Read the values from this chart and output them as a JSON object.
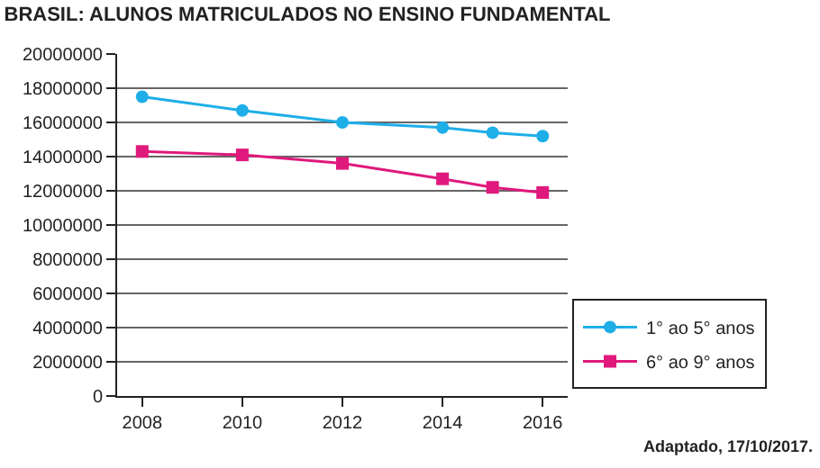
{
  "chart_data": {
    "type": "line",
    "title": "BRASIL: ALUNOS MATRICULADOS NO ENSINO FUNDAMENTAL",
    "x": [
      2008,
      2010,
      2012,
      2014,
      2015,
      2016
    ],
    "series": [
      {
        "name": "1° ao 5° anos",
        "color": "#1eaee8",
        "marker": "circle",
        "values": [
          17500000,
          16700000,
          16000000,
          15700000,
          15400000,
          15200000
        ]
      },
      {
        "name": "6° ao 9° anos",
        "color": "#e0197d",
        "marker": "square",
        "values": [
          14300000,
          14100000,
          13600000,
          12700000,
          12200000,
          11900000
        ]
      }
    ],
    "xlim": [
      2007.5,
      2016.5
    ],
    "xticks": [
      2008,
      2010,
      2012,
      2014,
      2016
    ],
    "ylim": [
      0,
      20000000
    ],
    "yticks": [
      0,
      2000000,
      4000000,
      6000000,
      8000000,
      10000000,
      12000000,
      14000000,
      16000000,
      18000000,
      20000000
    ],
    "grid": "y",
    "legend": "bottom right",
    "line_style": "solid",
    "annotations": [
      "Adaptado, 17/10/2017."
    ]
  }
}
